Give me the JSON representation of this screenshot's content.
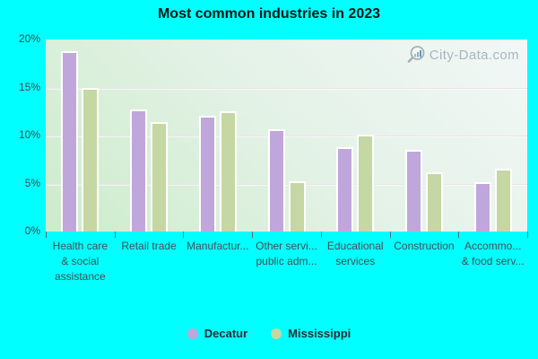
{
  "page": {
    "background": "#00ffff"
  },
  "watermark": {
    "text": "City-Data.com",
    "icon": "magnifier-chart-icon"
  },
  "chart_data": {
    "type": "bar",
    "title": "Most common industries in 2023",
    "categories": [
      "Health care & social assistance",
      "Retail trade",
      "Manufactur...",
      "Other servi... public adm...",
      "Educational services",
      "Construction",
      "Accommo... & food serv..."
    ],
    "category_label_lines": [
      [
        "Health care",
        "& social",
        "assistance"
      ],
      [
        "Retail trade"
      ],
      [
        "Manufactur..."
      ],
      [
        "Other servi...",
        "public adm..."
      ],
      [
        "Educational",
        "services"
      ],
      [
        "Construction"
      ],
      [
        "Accommo...",
        "& food serv..."
      ]
    ],
    "series": [
      {
        "name": "Decatur",
        "color": "#c0a7db",
        "values": [
          18.8,
          12.7,
          12.1,
          10.7,
          8.8,
          8.5,
          5.1
        ]
      },
      {
        "name": "Mississippi",
        "color": "#c5d7a2",
        "values": [
          15.0,
          11.4,
          12.5,
          5.2,
          10.1,
          6.2,
          6.5
        ]
      }
    ],
    "xlabel": "",
    "ylabel": "",
    "ylim": [
      0,
      20
    ],
    "yticks": [
      {
        "value": 0,
        "label": "0%"
      },
      {
        "value": 5,
        "label": "5%"
      },
      {
        "value": 10,
        "label": "10%"
      },
      {
        "value": 15,
        "label": "15%"
      },
      {
        "value": 20,
        "label": "20%"
      }
    ],
    "grid_values": [
      5,
      10,
      15
    ],
    "grid_color": "#ece3ea",
    "plot_bg_gradient": [
      "#f2f7f7",
      "#ccecca"
    ],
    "legend_position": "bottom",
    "bar_border_color": "#ffffff",
    "background_color": "#00ffff"
  }
}
